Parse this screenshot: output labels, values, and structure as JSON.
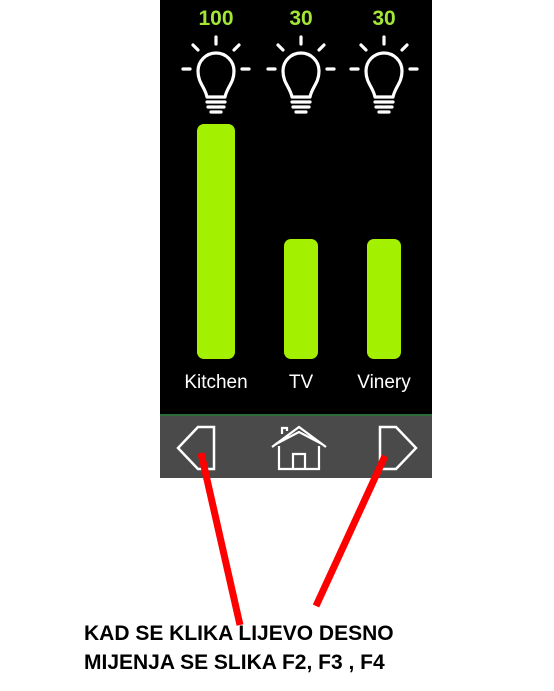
{
  "channels": [
    {
      "name": "Kitchen",
      "value": "100",
      "level": 100
    },
    {
      "name": "TV",
      "value": "30",
      "level": 30
    },
    {
      "name": "Vinery",
      "value": "30",
      "level": 30
    }
  ],
  "icons": {
    "bulb": "lightbulb-icon",
    "prev": "chevron-left-icon",
    "home": "home-icon",
    "next": "chevron-right-icon"
  },
  "colors": {
    "value_text": "#a3e635",
    "bar_fill": "#a3f000",
    "screen_bg": "#000000",
    "navbar_bg": "#4a4a4a",
    "annotation_arrow": "#ff0000"
  },
  "annotation": {
    "line1": "KAD SE KLIKA LIJEVO DESNO",
    "line2": "MIJENJA SE SLIKA F2, F3 , F4"
  }
}
